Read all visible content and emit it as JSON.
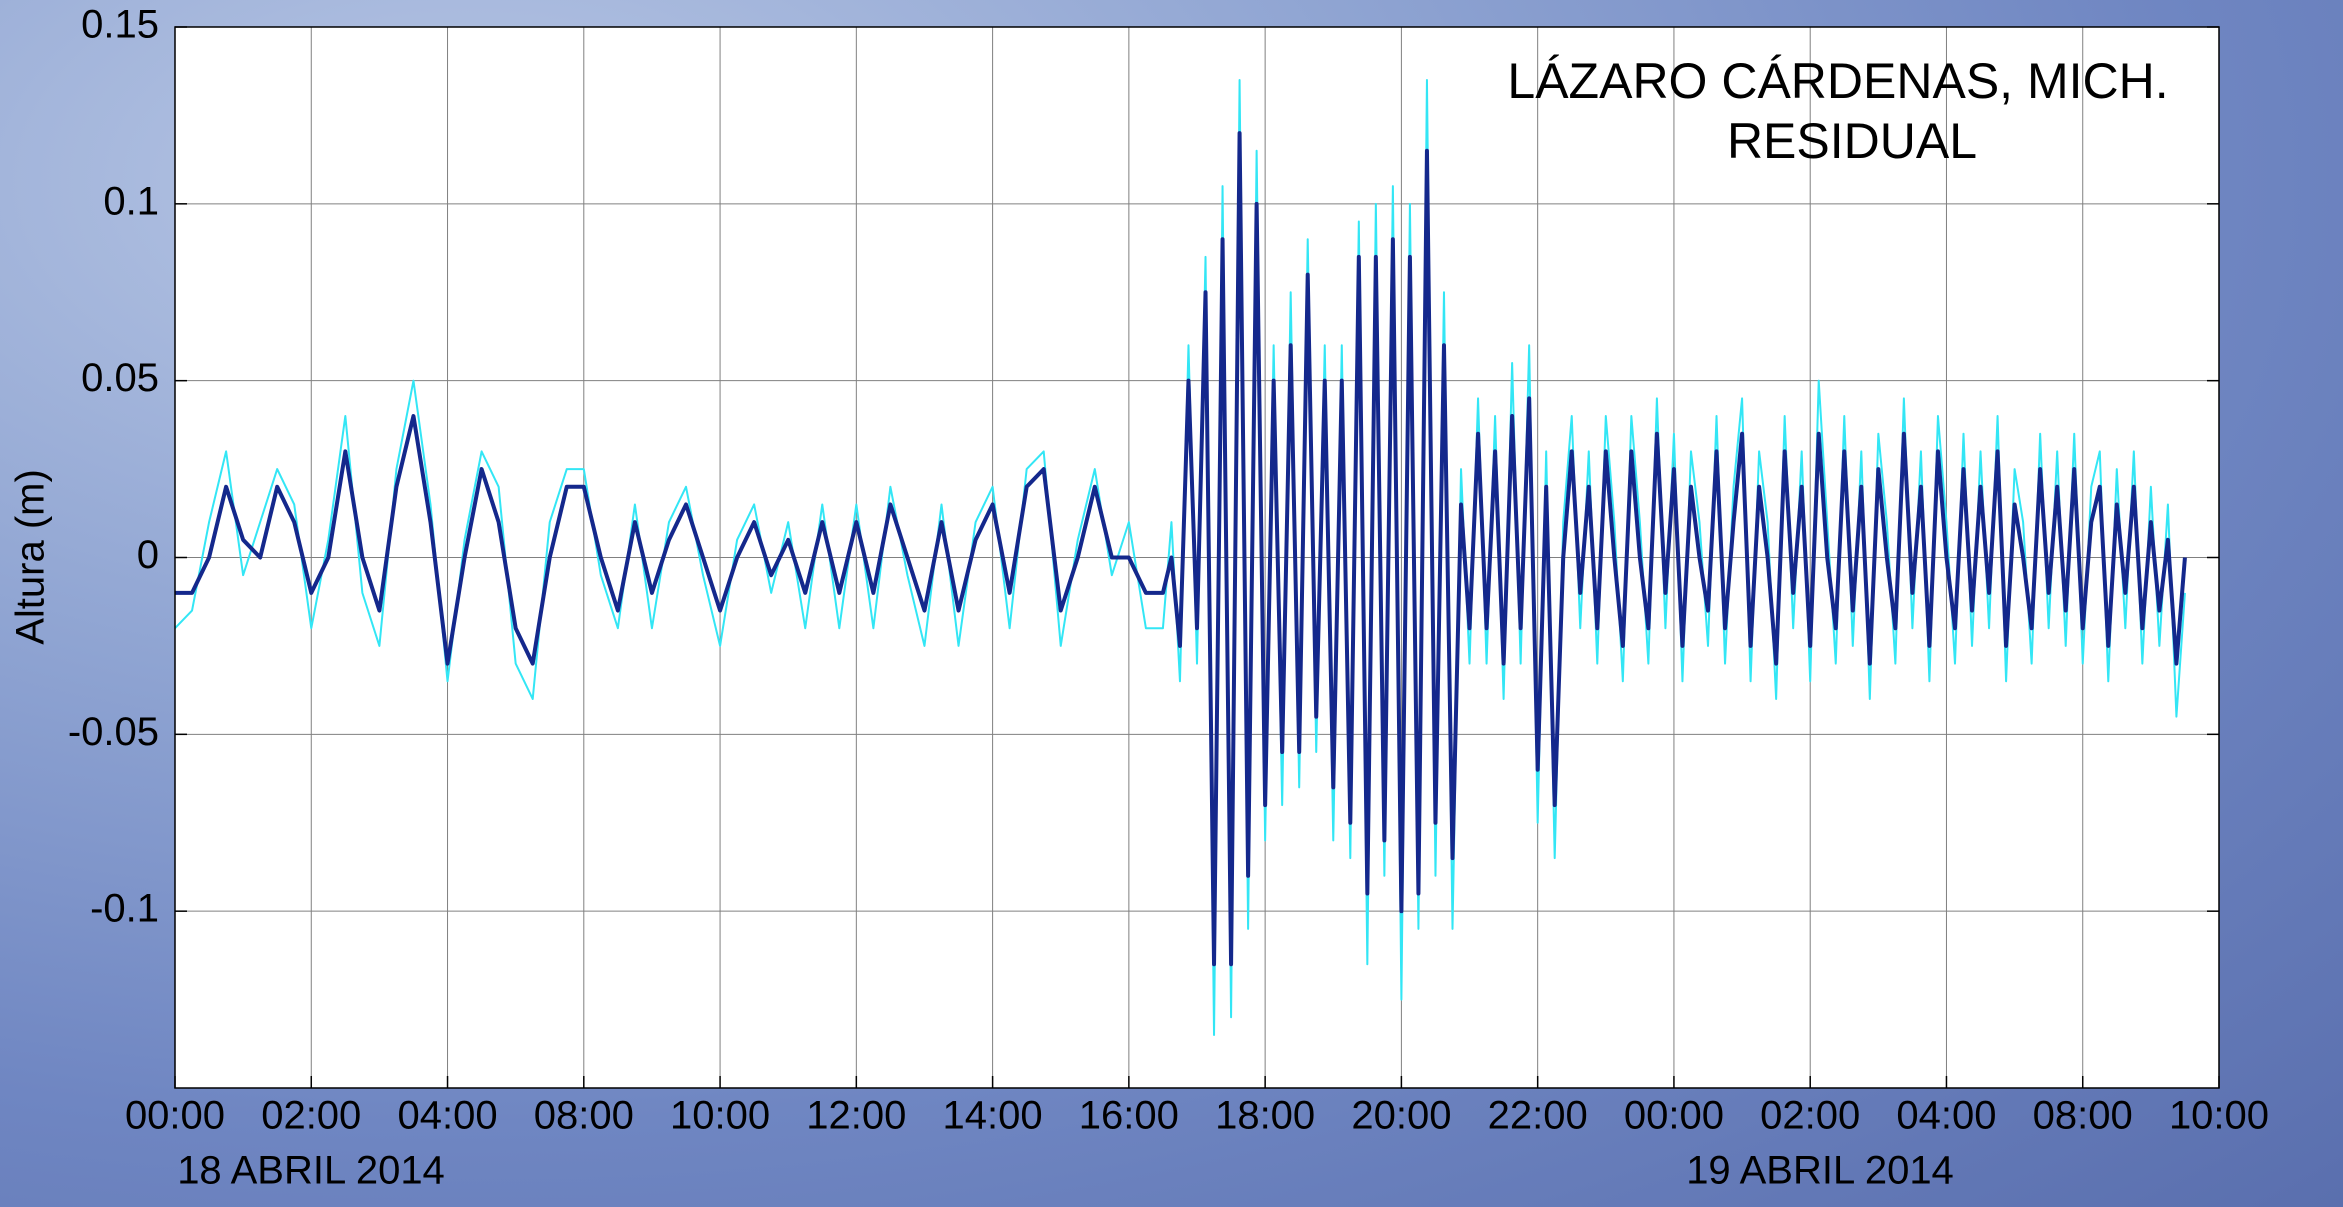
{
  "chart_data": {
    "type": "line",
    "title": [
      "LÁZARO CÁRDENAS, MICH.",
      "RESIDUAL"
    ],
    "ylabel": "Altura (m)",
    "annotations": [
      "18 ABRIL 2014",
      "19 ABRIL 2014"
    ],
    "xlim": [
      0,
      30
    ],
    "xticks": [
      {
        "value": 0,
        "label": "00:00"
      },
      {
        "value": 2,
        "label": "02:00"
      },
      {
        "value": 4,
        "label": "04:00"
      },
      {
        "value": 6,
        "label": "08:00"
      },
      {
        "value": 8,
        "label": "10:00"
      },
      {
        "value": 10,
        "label": "12:00"
      },
      {
        "value": 12,
        "label": "14:00"
      },
      {
        "value": 14,
        "label": "16:00"
      },
      {
        "value": 16,
        "label": "18:00"
      },
      {
        "value": 18,
        "label": "20:00"
      },
      {
        "value": 20,
        "label": "22:00"
      },
      {
        "value": 22,
        "label": "00:00"
      },
      {
        "value": 24,
        "label": "02:00"
      },
      {
        "value": 26,
        "label": "04:00"
      },
      {
        "value": 28,
        "label": "08:00"
      },
      {
        "value": 30,
        "label": "10:00"
      }
    ],
    "ylim": [
      -0.15,
      0.15
    ],
    "yticks": [
      -0.1,
      -0.05,
      0,
      0.05,
      0.1,
      0.15
    ],
    "grid": true,
    "x": [
      0,
      0.25,
      0.5,
      0.75,
      1,
      1.25,
      1.5,
      1.75,
      2,
      2.25,
      2.5,
      2.75,
      3,
      3.25,
      3.5,
      3.75,
      4,
      4.25,
      4.5,
      4.75,
      5,
      5.25,
      5.5,
      5.75,
      6,
      6.25,
      6.5,
      6.75,
      7,
      7.25,
      7.5,
      7.75,
      8,
      8.25,
      8.5,
      8.75,
      9,
      9.25,
      9.5,
      9.75,
      10,
      10.25,
      10.5,
      10.75,
      11,
      11.25,
      11.5,
      11.75,
      12,
      12.25,
      12.5,
      12.75,
      13,
      13.25,
      13.5,
      13.75,
      14,
      14.25,
      14.5,
      14.625,
      14.75,
      14.875,
      15,
      15.125,
      15.25,
      15.375,
      15.5,
      15.625,
      15.75,
      15.875,
      16,
      16.125,
      16.25,
      16.375,
      16.5,
      16.625,
      16.75,
      16.875,
      17,
      17.125,
      17.25,
      17.375,
      17.5,
      17.625,
      17.75,
      17.875,
      18,
      18.125,
      18.25,
      18.375,
      18.5,
      18.625,
      18.75,
      18.875,
      19,
      19.125,
      19.25,
      19.375,
      19.5,
      19.625,
      19.75,
      19.875,
      20,
      20.125,
      20.25,
      20.375,
      20.5,
      20.625,
      20.75,
      20.875,
      21,
      21.125,
      21.25,
      21.375,
      21.5,
      21.625,
      21.75,
      21.875,
      22,
      22.125,
      22.25,
      22.375,
      22.5,
      22.625,
      22.75,
      22.875,
      23,
      23.125,
      23.25,
      23.375,
      23.5,
      23.625,
      23.75,
      23.875,
      24,
      24.125,
      24.25,
      24.375,
      24.5,
      24.625,
      24.75,
      24.875,
      25,
      25.125,
      25.25,
      25.375,
      25.5,
      25.625,
      25.75,
      25.875,
      26,
      26.125,
      26.25,
      26.375,
      26.5,
      26.625,
      26.75,
      26.875,
      27,
      27.125,
      27.25,
      27.375,
      27.5,
      27.625,
      27.75,
      27.875,
      28,
      28.125,
      28.25,
      28.375,
      28.5,
      28.625,
      28.75,
      28.875,
      29,
      29.125,
      29.25,
      29.375,
      29.5
    ],
    "series": [
      {
        "color": "#33e6f5",
        "values": [
          -0.02,
          -0.015,
          0.01,
          0.03,
          -0.005,
          0.01,
          0.025,
          0.015,
          -0.02,
          0.005,
          0.04,
          -0.01,
          -0.025,
          0.025,
          0.05,
          0.015,
          -0.035,
          0.005,
          0.03,
          0.02,
          -0.03,
          -0.04,
          0.01,
          0.025,
          0.025,
          -0.005,
          -0.02,
          0.015,
          -0.02,
          0.01,
          0.02,
          -0.005,
          -0.025,
          0.005,
          0.015,
          -0.01,
          0.01,
          -0.02,
          0.015,
          -0.02,
          0.015,
          -0.02,
          0.02,
          -0.005,
          -0.025,
          0.015,
          -0.025,
          0.01,
          0.02,
          -0.02,
          0.025,
          0.03,
          -0.025,
          0.005,
          0.025,
          -0.005,
          0.01,
          -0.02,
          -0.02,
          0.01,
          -0.035,
          0.06,
          -0.03,
          0.085,
          -0.135,
          0.105,
          -0.13,
          0.135,
          -0.105,
          0.115,
          -0.08,
          0.06,
          -0.07,
          0.075,
          -0.065,
          0.09,
          -0.055,
          0.06,
          -0.08,
          0.06,
          -0.085,
          0.095,
          -0.115,
          0.1,
          -0.09,
          0.105,
          -0.125,
          0.1,
          -0.105,
          0.135,
          -0.09,
          0.075,
          -0.105,
          0.025,
          -0.03,
          0.045,
          -0.03,
          0.04,
          -0.04,
          0.055,
          -0.03,
          0.06,
          -0.075,
          0.03,
          -0.085,
          0.01,
          0.04,
          -0.02,
          0.03,
          -0.03,
          0.04,
          0.01,
          -0.035,
          0.04,
          0.01,
          -0.03,
          0.045,
          -0.02,
          0.035,
          -0.035,
          0.03,
          0.01,
          -0.025,
          0.04,
          -0.03,
          0.02,
          0.045,
          -0.035,
          0.03,
          0.01,
          -0.04,
          0.04,
          -0.02,
          0.03,
          -0.035,
          0.05,
          0.01,
          -0.03,
          0.04,
          -0.025,
          0.03,
          -0.04,
          0.035,
          0.01,
          -0.03,
          0.045,
          -0.02,
          0.03,
          -0.035,
          0.04,
          0.01,
          -0.03,
          0.035,
          -0.025,
          0.03,
          -0.02,
          0.04,
          -0.035,
          0.025,
          0.01,
          -0.03,
          0.035,
          -0.02,
          0.03,
          -0.025,
          0.035,
          -0.03,
          0.02,
          0.03,
          -0.035,
          0.025,
          -0.02,
          0.03,
          -0.03,
          0.02,
          -0.025,
          0.015,
          -0.045,
          -0.01
        ]
      },
      {
        "color": "#14288c",
        "values": [
          -0.01,
          -0.01,
          0,
          0.02,
          0.005,
          0,
          0.02,
          0.01,
          -0.01,
          0,
          0.03,
          0,
          -0.015,
          0.02,
          0.04,
          0.01,
          -0.03,
          0,
          0.025,
          0.01,
          -0.02,
          -0.03,
          0,
          0.02,
          0.02,
          0,
          -0.015,
          0.01,
          -0.01,
          0.005,
          0.015,
          0,
          -0.015,
          0,
          0.01,
          -0.005,
          0.005,
          -0.01,
          0.01,
          -0.01,
          0.01,
          -0.01,
          0.015,
          0,
          -0.015,
          0.01,
          -0.015,
          0.005,
          0.015,
          -0.01,
          0.02,
          0.025,
          -0.015,
          0,
          0.02,
          0,
          0,
          -0.01,
          -0.01,
          0,
          -0.025,
          0.05,
          -0.02,
          0.075,
          -0.115,
          0.09,
          -0.115,
          0.12,
          -0.09,
          0.1,
          -0.07,
          0.05,
          -0.055,
          0.06,
          -0.055,
          0.08,
          -0.045,
          0.05,
          -0.065,
          0.05,
          -0.075,
          0.085,
          -0.095,
          0.085,
          -0.08,
          0.09,
          -0.1,
          0.085,
          -0.095,
          0.115,
          -0.075,
          0.06,
          -0.085,
          0.015,
          -0.02,
          0.035,
          -0.02,
          0.03,
          -0.03,
          0.04,
          -0.02,
          0.045,
          -0.06,
          0.02,
          -0.07,
          0,
          0.03,
          -0.01,
          0.02,
          -0.02,
          0.03,
          0,
          -0.025,
          0.03,
          0,
          -0.02,
          0.035,
          -0.01,
          0.025,
          -0.025,
          0.02,
          0,
          -0.015,
          0.03,
          -0.02,
          0.01,
          0.035,
          -0.025,
          0.02,
          0,
          -0.03,
          0.03,
          -0.01,
          0.02,
          -0.025,
          0.035,
          0,
          -0.02,
          0.03,
          -0.015,
          0.02,
          -0.03,
          0.025,
          0,
          -0.02,
          0.035,
          -0.01,
          0.02,
          -0.025,
          0.03,
          0,
          -0.02,
          0.025,
          -0.015,
          0.02,
          -0.01,
          0.03,
          -0.025,
          0.015,
          0,
          -0.02,
          0.025,
          -0.01,
          0.02,
          -0.015,
          0.025,
          -0.02,
          0.01,
          0.02,
          -0.025,
          0.015,
          -0.01,
          0.02,
          -0.02,
          0.01,
          -0.015,
          0.005,
          -0.03,
          0
        ]
      }
    ]
  }
}
